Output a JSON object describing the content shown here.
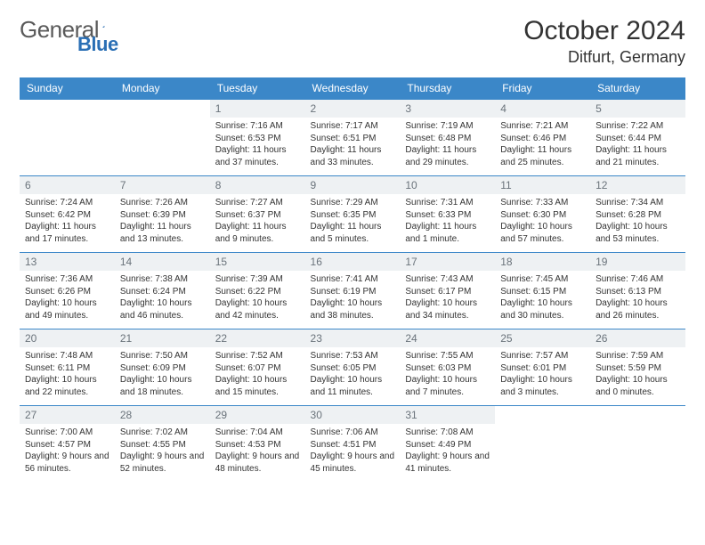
{
  "logo": {
    "text1": "General",
    "text2": "Blue"
  },
  "title": "October 2024",
  "location": "Ditfurt, Germany",
  "colors": {
    "header_bg": "#3b87c8",
    "header_text": "#ffffff",
    "daynum_bg": "#eef1f3",
    "daynum_text": "#6a737b",
    "border": "#3b87c8",
    "logo_gray": "#5a5a5a",
    "logo_blue": "#2a6fb5"
  },
  "day_headers": [
    "Sunday",
    "Monday",
    "Tuesday",
    "Wednesday",
    "Thursday",
    "Friday",
    "Saturday"
  ],
  "weeks": [
    [
      null,
      null,
      {
        "n": "1",
        "sunrise": "Sunrise: 7:16 AM",
        "sunset": "Sunset: 6:53 PM",
        "daylight": "Daylight: 11 hours and 37 minutes."
      },
      {
        "n": "2",
        "sunrise": "Sunrise: 7:17 AM",
        "sunset": "Sunset: 6:51 PM",
        "daylight": "Daylight: 11 hours and 33 minutes."
      },
      {
        "n": "3",
        "sunrise": "Sunrise: 7:19 AM",
        "sunset": "Sunset: 6:48 PM",
        "daylight": "Daylight: 11 hours and 29 minutes."
      },
      {
        "n": "4",
        "sunrise": "Sunrise: 7:21 AM",
        "sunset": "Sunset: 6:46 PM",
        "daylight": "Daylight: 11 hours and 25 minutes."
      },
      {
        "n": "5",
        "sunrise": "Sunrise: 7:22 AM",
        "sunset": "Sunset: 6:44 PM",
        "daylight": "Daylight: 11 hours and 21 minutes."
      }
    ],
    [
      {
        "n": "6",
        "sunrise": "Sunrise: 7:24 AM",
        "sunset": "Sunset: 6:42 PM",
        "daylight": "Daylight: 11 hours and 17 minutes."
      },
      {
        "n": "7",
        "sunrise": "Sunrise: 7:26 AM",
        "sunset": "Sunset: 6:39 PM",
        "daylight": "Daylight: 11 hours and 13 minutes."
      },
      {
        "n": "8",
        "sunrise": "Sunrise: 7:27 AM",
        "sunset": "Sunset: 6:37 PM",
        "daylight": "Daylight: 11 hours and 9 minutes."
      },
      {
        "n": "9",
        "sunrise": "Sunrise: 7:29 AM",
        "sunset": "Sunset: 6:35 PM",
        "daylight": "Daylight: 11 hours and 5 minutes."
      },
      {
        "n": "10",
        "sunrise": "Sunrise: 7:31 AM",
        "sunset": "Sunset: 6:33 PM",
        "daylight": "Daylight: 11 hours and 1 minute."
      },
      {
        "n": "11",
        "sunrise": "Sunrise: 7:33 AM",
        "sunset": "Sunset: 6:30 PM",
        "daylight": "Daylight: 10 hours and 57 minutes."
      },
      {
        "n": "12",
        "sunrise": "Sunrise: 7:34 AM",
        "sunset": "Sunset: 6:28 PM",
        "daylight": "Daylight: 10 hours and 53 minutes."
      }
    ],
    [
      {
        "n": "13",
        "sunrise": "Sunrise: 7:36 AM",
        "sunset": "Sunset: 6:26 PM",
        "daylight": "Daylight: 10 hours and 49 minutes."
      },
      {
        "n": "14",
        "sunrise": "Sunrise: 7:38 AM",
        "sunset": "Sunset: 6:24 PM",
        "daylight": "Daylight: 10 hours and 46 minutes."
      },
      {
        "n": "15",
        "sunrise": "Sunrise: 7:39 AM",
        "sunset": "Sunset: 6:22 PM",
        "daylight": "Daylight: 10 hours and 42 minutes."
      },
      {
        "n": "16",
        "sunrise": "Sunrise: 7:41 AM",
        "sunset": "Sunset: 6:19 PM",
        "daylight": "Daylight: 10 hours and 38 minutes."
      },
      {
        "n": "17",
        "sunrise": "Sunrise: 7:43 AM",
        "sunset": "Sunset: 6:17 PM",
        "daylight": "Daylight: 10 hours and 34 minutes."
      },
      {
        "n": "18",
        "sunrise": "Sunrise: 7:45 AM",
        "sunset": "Sunset: 6:15 PM",
        "daylight": "Daylight: 10 hours and 30 minutes."
      },
      {
        "n": "19",
        "sunrise": "Sunrise: 7:46 AM",
        "sunset": "Sunset: 6:13 PM",
        "daylight": "Daylight: 10 hours and 26 minutes."
      }
    ],
    [
      {
        "n": "20",
        "sunrise": "Sunrise: 7:48 AM",
        "sunset": "Sunset: 6:11 PM",
        "daylight": "Daylight: 10 hours and 22 minutes."
      },
      {
        "n": "21",
        "sunrise": "Sunrise: 7:50 AM",
        "sunset": "Sunset: 6:09 PM",
        "daylight": "Daylight: 10 hours and 18 minutes."
      },
      {
        "n": "22",
        "sunrise": "Sunrise: 7:52 AM",
        "sunset": "Sunset: 6:07 PM",
        "daylight": "Daylight: 10 hours and 15 minutes."
      },
      {
        "n": "23",
        "sunrise": "Sunrise: 7:53 AM",
        "sunset": "Sunset: 6:05 PM",
        "daylight": "Daylight: 10 hours and 11 minutes."
      },
      {
        "n": "24",
        "sunrise": "Sunrise: 7:55 AM",
        "sunset": "Sunset: 6:03 PM",
        "daylight": "Daylight: 10 hours and 7 minutes."
      },
      {
        "n": "25",
        "sunrise": "Sunrise: 7:57 AM",
        "sunset": "Sunset: 6:01 PM",
        "daylight": "Daylight: 10 hours and 3 minutes."
      },
      {
        "n": "26",
        "sunrise": "Sunrise: 7:59 AM",
        "sunset": "Sunset: 5:59 PM",
        "daylight": "Daylight: 10 hours and 0 minutes."
      }
    ],
    [
      {
        "n": "27",
        "sunrise": "Sunrise: 7:00 AM",
        "sunset": "Sunset: 4:57 PM",
        "daylight": "Daylight: 9 hours and 56 minutes."
      },
      {
        "n": "28",
        "sunrise": "Sunrise: 7:02 AM",
        "sunset": "Sunset: 4:55 PM",
        "daylight": "Daylight: 9 hours and 52 minutes."
      },
      {
        "n": "29",
        "sunrise": "Sunrise: 7:04 AM",
        "sunset": "Sunset: 4:53 PM",
        "daylight": "Daylight: 9 hours and 48 minutes."
      },
      {
        "n": "30",
        "sunrise": "Sunrise: 7:06 AM",
        "sunset": "Sunset: 4:51 PM",
        "daylight": "Daylight: 9 hours and 45 minutes."
      },
      {
        "n": "31",
        "sunrise": "Sunrise: 7:08 AM",
        "sunset": "Sunset: 4:49 PM",
        "daylight": "Daylight: 9 hours and 41 minutes."
      },
      null,
      null
    ]
  ]
}
